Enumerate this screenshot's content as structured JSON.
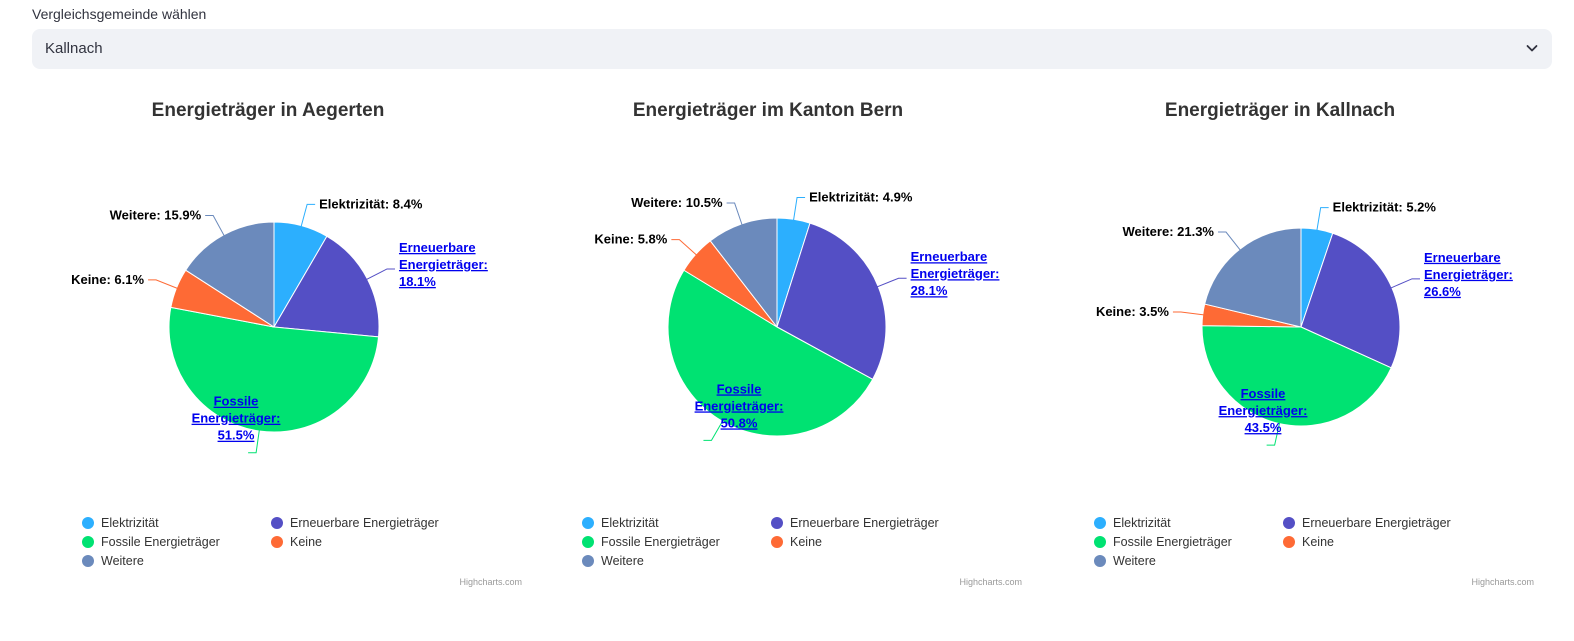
{
  "select": {
    "label": "Vergleichsgemeinde wählen",
    "value": "Kallnach",
    "icon": "chevron-down-icon"
  },
  "colors": {
    "Elektrizität": "#2caffe",
    "Erneuerbare Energieträger": "#544fc5",
    "Fossile Energieträger": "#00e272",
    "Keine": "#fe6a35",
    "Weitere": "#6b8abc"
  },
  "credits": "Highcharts.com",
  "chart_data": [
    {
      "type": "pie",
      "title": "Energieträger in Aegerten",
      "slices": [
        {
          "name": "Elektrizität",
          "value": 8.4,
          "label": "Elektrizität: 8.4%"
        },
        {
          "name": "Erneuerbare Energieträger",
          "value": 18.1,
          "label": "Erneuerbare Energieträger: 18.1%"
        },
        {
          "name": "Fossile Energieträger",
          "value": 51.5,
          "label": "Fossile Energieträger: 51.5%"
        },
        {
          "name": "Keine",
          "value": 6.1,
          "label": "Keine: 6.1%"
        },
        {
          "name": "Weitere",
          "value": 15.9,
          "label": "Weitere: 15.9%"
        }
      ],
      "legend": [
        "Elektrizität",
        "Erneuerbare Energieträger",
        "Fossile Energieträger",
        "Keine",
        "Weitere"
      ]
    },
    {
      "type": "pie",
      "title": "Energieträger im Kanton Bern",
      "slices": [
        {
          "name": "Elektrizität",
          "value": 4.9,
          "label": "Elektrizität: 4.9%"
        },
        {
          "name": "Erneuerbare Energieträger",
          "value": 28.1,
          "label": "Erneuerbare Energieträger: 28.1%"
        },
        {
          "name": "Fossile Energieträger",
          "value": 50.8,
          "label": "Fossile Energieträger: 50.8%"
        },
        {
          "name": "Keine",
          "value": 5.8,
          "label": "Keine: 5.8%"
        },
        {
          "name": "Weitere",
          "value": 10.5,
          "label": "Weitere: 10.5%"
        }
      ],
      "legend": [
        "Elektrizität",
        "Erneuerbare Energieträger",
        "Fossile Energieträger",
        "Keine",
        "Weitere"
      ]
    },
    {
      "type": "pie",
      "title": "Energieträger in Kallnach",
      "slices": [
        {
          "name": "Elektrizität",
          "value": 5.2,
          "label": "Elektrizität: 5.2%"
        },
        {
          "name": "Erneuerbare Energieträger",
          "value": 26.6,
          "label": "Erneuerbare Energieträger: 26.6%"
        },
        {
          "name": "Fossile Energieträger",
          "value": 43.5,
          "label": "Fossile Energieträger: 43.5%"
        },
        {
          "name": "Keine",
          "value": 3.5,
          "label": "Keine: 3.5%"
        },
        {
          "name": "Weitere",
          "value": 21.3,
          "label": "Weitere: 21.3%"
        }
      ],
      "legend": [
        "Elektrizität",
        "Erneuerbare Energieträger",
        "Fossile Energieträger",
        "Keine",
        "Weitere"
      ]
    }
  ]
}
